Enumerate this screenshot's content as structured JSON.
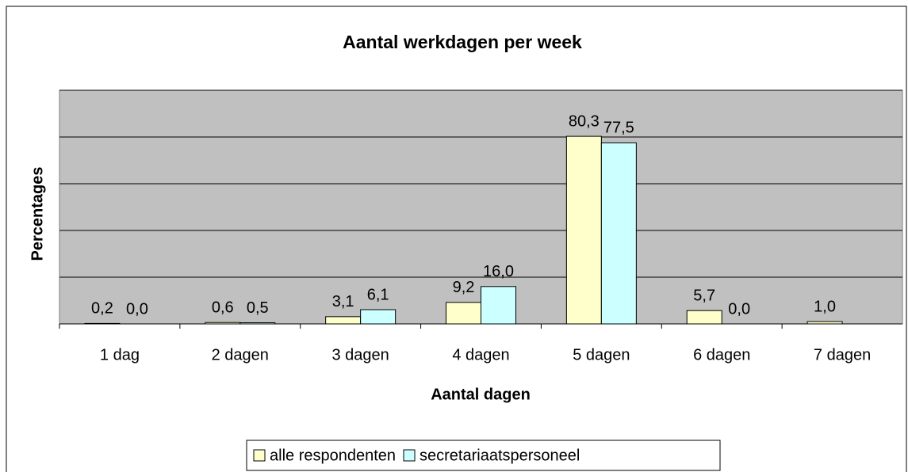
{
  "chart_data": {
    "type": "bar",
    "title": "Aantal werkdagen per week",
    "x_label": "Aantal dagen",
    "y_label": "Percentages",
    "categories": [
      "1 dag",
      "2 dagen",
      "3 dagen",
      "4 dagen",
      "5 dagen",
      "6 dagen",
      "7 dagen"
    ],
    "series": [
      {
        "name": "alle respondenten",
        "color": "#ffffcc",
        "values": [
          0.2,
          0.6,
          3.1,
          9.2,
          80.3,
          5.7,
          1.0
        ],
        "value_labels": [
          "0,2",
          "0,6",
          "3,1",
          "9,2",
          "80,3",
          "5,7",
          "1,0"
        ]
      },
      {
        "name": "secretariaatspersoneel",
        "color": "#ccffff",
        "values": [
          0.0,
          0.5,
          6.1,
          16.0,
          77.5,
          0.0,
          null
        ],
        "value_labels": [
          "0,0",
          "0,5",
          "6,1",
          "16,0",
          "77,5",
          "0,0",
          null
        ]
      }
    ],
    "ylim": [
      0,
      100
    ],
    "yticks": [
      0,
      20,
      40,
      60,
      80,
      100
    ],
    "grid": true,
    "plot_background": "#c0c0c0",
    "legend": "bottom"
  }
}
